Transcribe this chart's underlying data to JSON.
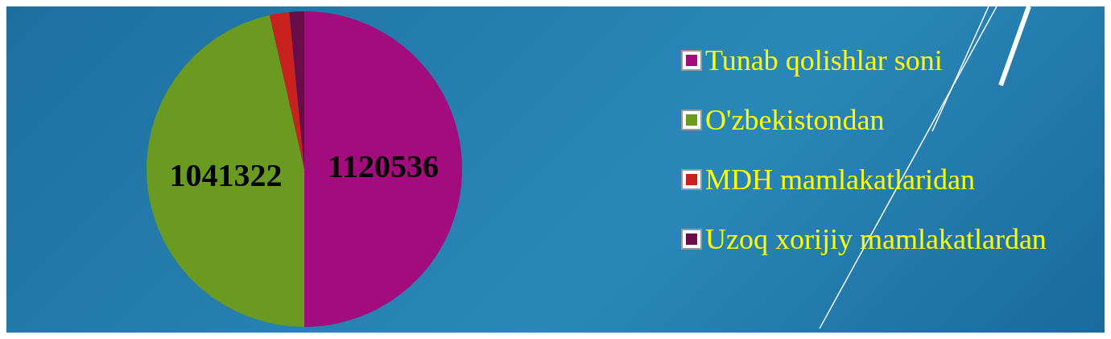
{
  "chart_data": {
    "type": "pie",
    "categories": [
      "Tunab qolishlar soni",
      "O'zbekistondan",
      "MDH mamlakatlaridan",
      "Uzoq xorijiy mamlakatlardan"
    ],
    "values": [
      1120536,
      1041322,
      45000,
      34214
    ],
    "value_labels": [
      "1120536",
      "1041322",
      null,
      null
    ],
    "colors": [
      "#a30c7c",
      "#6a9a1f",
      "#c8211e",
      "#6a0b4a"
    ],
    "legend": "right"
  }
}
